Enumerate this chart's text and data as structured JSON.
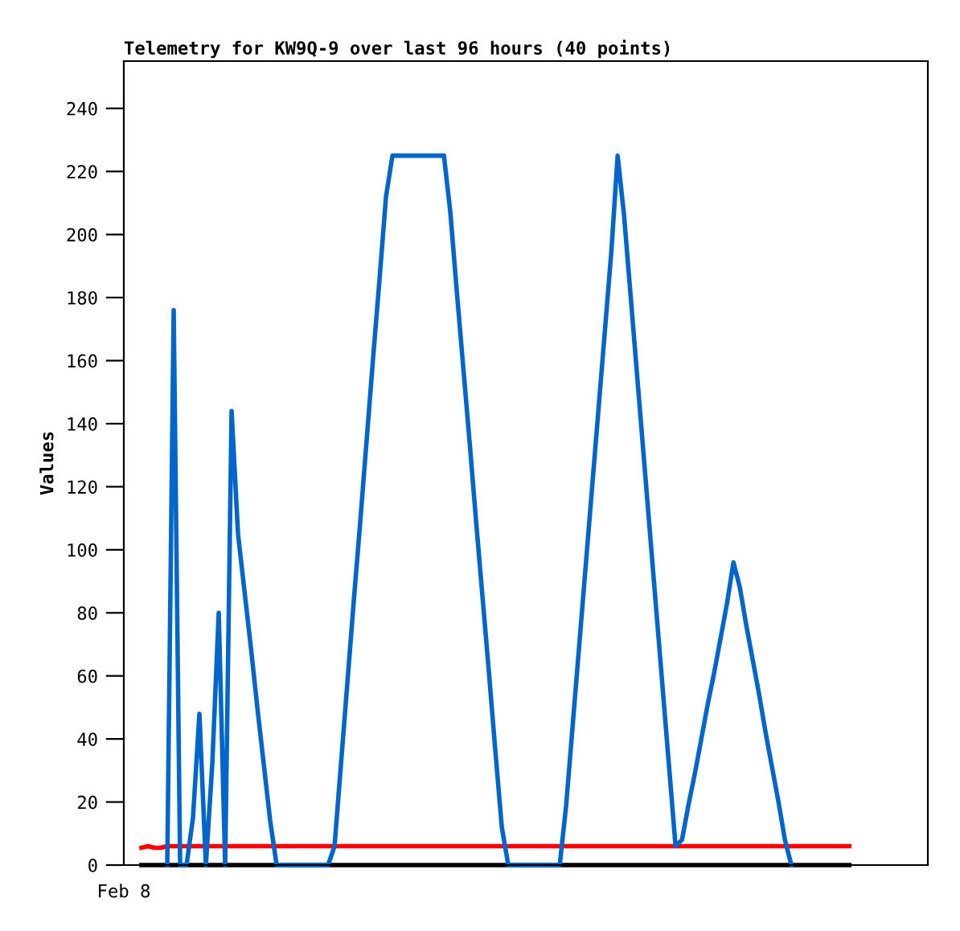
{
  "chart_data": {
    "type": "line",
    "title": "Telemetry for KW9Q-9 over last 96 hours (40 points)",
    "ylabel": "Values",
    "annotations": [
      "Feb 8"
    ],
    "categories": [
      null,
      null,
      null,
      null,
      null,
      null,
      null,
      null,
      null,
      null,
      null,
      null,
      null,
      null,
      null,
      null,
      null,
      null,
      null,
      null,
      null,
      null,
      null,
      null,
      null,
      null,
      null,
      null,
      null,
      null,
      null,
      null,
      null,
      null,
      null,
      null,
      null,
      null,
      null,
      null,
      null,
      null,
      null,
      null,
      null,
      null,
      null,
      null,
      null,
      null,
      null,
      null,
      null,
      null,
      null,
      null,
      null,
      null,
      null,
      null,
      null,
      null,
      null,
      null,
      null,
      null,
      null,
      null,
      null,
      null,
      null,
      null,
      null,
      null,
      null,
      null,
      null,
      null,
      null,
      null,
      null,
      null,
      null,
      null,
      null,
      null,
      null,
      null,
      null,
      null,
      null,
      null,
      null,
      null,
      null,
      null,
      null,
      null,
      null,
      null,
      null,
      null,
      null,
      null,
      null,
      null,
      null,
      null,
      null,
      null,
      null
    ],
    "ylim": [
      0,
      255
    ],
    "yticks": [
      0,
      20,
      40,
      60,
      80,
      100,
      120,
      140,
      160,
      180,
      200,
      220,
      240
    ],
    "grid": false,
    "legend": false,
    "series": [
      {
        "color": "#000000",
        "values": [
          0,
          0,
          0,
          0,
          0,
          0,
          0,
          0,
          0,
          0,
          0,
          0,
          0,
          0,
          0,
          0,
          0,
          0,
          0,
          0,
          0,
          0,
          0,
          0,
          0,
          0,
          0,
          0,
          0,
          0,
          0,
          0,
          0,
          0,
          0,
          0,
          0,
          0,
          0,
          0,
          0,
          0,
          0,
          0,
          0,
          0,
          0,
          0,
          0,
          0,
          0,
          0,
          0,
          0,
          0,
          0,
          0,
          0,
          0,
          0,
          0,
          0,
          0,
          0,
          0,
          0,
          0,
          0,
          0,
          0,
          0,
          0,
          0,
          0,
          0,
          0,
          0,
          0,
          0,
          0,
          0,
          0,
          0,
          0,
          0,
          0,
          0,
          0,
          0,
          0,
          0,
          0,
          0,
          0,
          0,
          0,
          0,
          0,
          0,
          0,
          0,
          0,
          0,
          0,
          0,
          0,
          0,
          0,
          0,
          0,
          0
        ]
      },
      {
        "color": "#ff0000",
        "values": [
          5.5,
          6,
          5.5,
          5.5,
          6,
          6,
          6,
          6,
          6,
          6,
          6,
          6,
          6,
          6,
          6,
          6,
          6,
          6,
          6,
          6,
          6,
          6,
          6,
          6,
          6,
          6,
          6,
          6,
          6,
          6,
          6,
          6,
          6,
          6,
          6,
          6,
          6,
          6,
          6,
          6,
          6,
          6,
          6,
          6,
          6,
          6,
          6,
          6,
          6,
          6,
          6,
          6,
          6,
          6,
          6,
          6,
          6,
          6,
          6,
          6,
          6,
          6,
          6,
          6,
          6,
          6,
          6,
          6,
          6,
          6,
          6,
          6,
          6,
          6,
          6,
          6,
          6,
          6,
          6,
          6,
          6,
          6,
          6,
          6,
          6,
          6,
          6,
          6,
          6,
          6,
          6,
          6,
          6,
          6,
          6,
          6,
          6,
          6,
          6,
          6,
          6,
          6,
          6,
          6,
          6,
          6,
          6,
          6,
          6,
          6,
          6
        ]
      },
      {
        "color": "#0066cc",
        "values": [
          null,
          null,
          null,
          null,
          0,
          176,
          0,
          0,
          15,
          48,
          0,
          32,
          80,
          0,
          144,
          105,
          87,
          69,
          50,
          32,
          14,
          0,
          0,
          0,
          0,
          0,
          0,
          0,
          0,
          0,
          6,
          32,
          58,
          84,
          109,
          135,
          161,
          186,
          212,
          225,
          225,
          225,
          225,
          225,
          225,
          225,
          225,
          225,
          207,
          182,
          158,
          134,
          109,
          85,
          61,
          36,
          12,
          0,
          0,
          0,
          0,
          0,
          0,
          0,
          0,
          0,
          19,
          44,
          69,
          94,
          119,
          144,
          169,
          194,
          225,
          206,
          181,
          156,
          131,
          106,
          81,
          56,
          31,
          6,
          8,
          19,
          29,
          40,
          51,
          61,
          72,
          83,
          96,
          88,
          76,
          65,
          54,
          42,
          31,
          20,
          8,
          0,
          null,
          null,
          null,
          null,
          null,
          null,
          null,
          null,
          null
        ]
      }
    ]
  }
}
